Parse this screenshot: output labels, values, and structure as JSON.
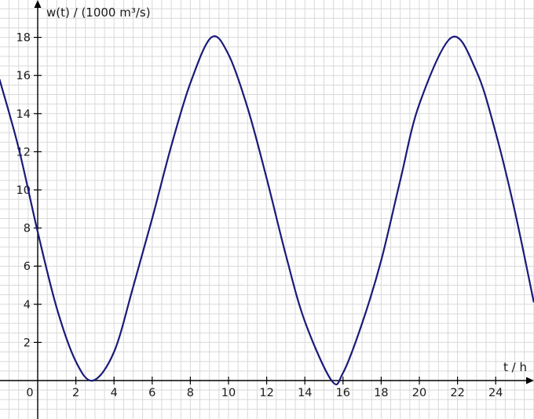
{
  "chart_data": {
    "type": "line",
    "ylabel": "w(t) / (1000 m³/s)",
    "xlabel": "t / h",
    "origin_label": "0",
    "xlim": [
      -2,
      26
    ],
    "ylim": [
      -1.6,
      20
    ],
    "x_ticks": [
      2,
      4,
      6,
      8,
      10,
      12,
      14,
      16,
      18,
      20,
      22,
      24
    ],
    "y_ticks": [
      2,
      4,
      6,
      8,
      10,
      12,
      14,
      16,
      18
    ],
    "grid": true,
    "series": [
      {
        "x": [
          -2,
          -1,
          0,
          1,
          2,
          2.9,
          4,
          5,
          6,
          7,
          8,
          9.1,
          10,
          11,
          12,
          13,
          14,
          15.4,
          16,
          17,
          18,
          19,
          20,
          21.7,
          23,
          24,
          25,
          26
        ],
        "values": [
          15.8,
          12.2,
          7.8,
          3.8,
          1.0,
          0.0,
          1.5,
          4.9,
          8.5,
          12.3,
          15.6,
          18.0,
          17.1,
          14.3,
          10.6,
          6.6,
          3.1,
          0.0,
          0.4,
          3.0,
          6.3,
          10.5,
          14.5,
          18.0,
          16.2,
          13.0,
          8.9,
          4.1
        ],
        "color": "#1a1a7a"
      }
    ]
  }
}
